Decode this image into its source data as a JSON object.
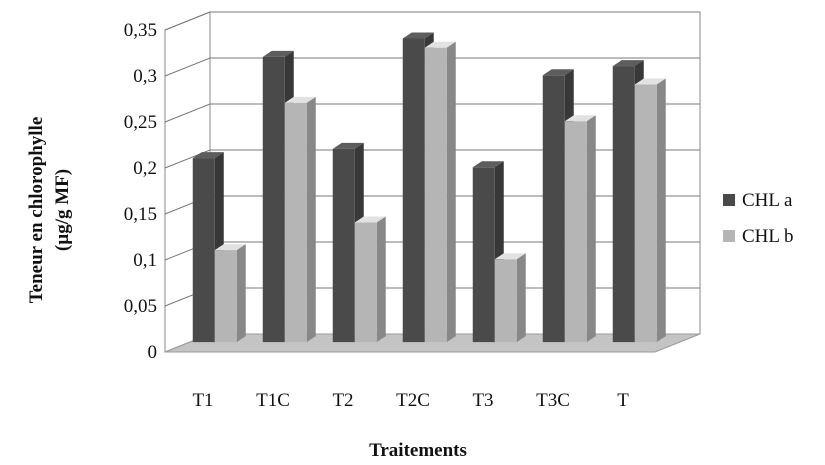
{
  "chart_data": {
    "type": "bar",
    "categories": [
      "T1",
      "T1C",
      "T2",
      "T2C",
      "T3",
      "T3C",
      "T"
    ],
    "series": [
      {
        "name": "CHL a",
        "values": [
          0.2,
          0.31,
          0.21,
          0.33,
          0.19,
          0.29,
          0.3
        ],
        "color": "#4a4a4a"
      },
      {
        "name": "CHL b",
        "values": [
          0.1,
          0.26,
          0.13,
          0.32,
          0.09,
          0.24,
          0.28
        ],
        "color": "#b5b5b5"
      }
    ],
    "title": "",
    "xlabel": "Traitements",
    "ylabel_lines": [
      "Teneur en chlorophylle",
      "(µg/g MF)"
    ],
    "ylim": [
      0,
      0.35
    ],
    "yticks": [
      "0",
      "0,05",
      "0,1",
      "0,15",
      "0,2",
      "0,25",
      "0,3",
      "0,35"
    ],
    "grid": true,
    "legend_position": "right",
    "style": "3d-clustered-column"
  }
}
